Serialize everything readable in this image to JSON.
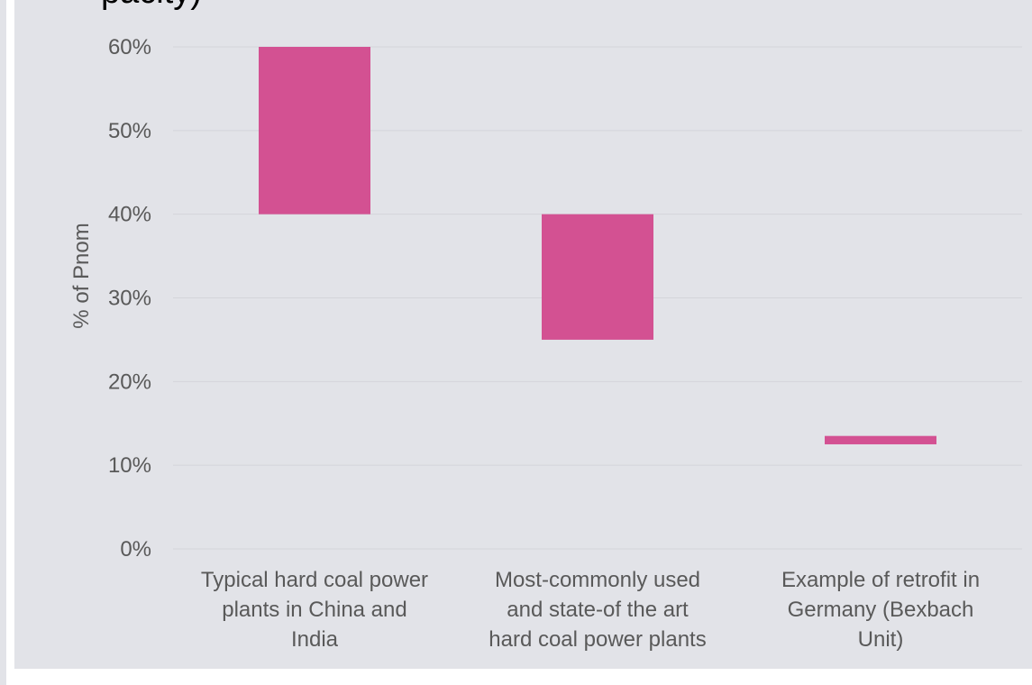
{
  "chart_title_fragment": "pacity)",
  "chart_data": {
    "type": "bar",
    "subtype": "floating-range",
    "ylabel": "% of Pnom",
    "xlabel": "",
    "ylim": [
      0,
      60
    ],
    "y_ticks": [
      0,
      10,
      20,
      30,
      40,
      50,
      60
    ],
    "y_tick_labels": [
      "0%",
      "10%",
      "20%",
      "30%",
      "40%",
      "50%",
      "60%"
    ],
    "categories": [
      [
        "Typical hard coal power",
        "plants in China and",
        "India"
      ],
      [
        "Most-commonly used",
        "and state-of the art",
        "hard coal power plants"
      ],
      [
        "Example of retrofit in",
        "Germany (Bexbach",
        "Unit)"
      ]
    ],
    "ranges": [
      {
        "low": 40,
        "high": 60
      },
      {
        "low": 25,
        "high": 40
      },
      {
        "low": 12.5,
        "high": 13.5
      }
    ],
    "bar_color": "#d35192",
    "grid": true,
    "legend": "none"
  }
}
